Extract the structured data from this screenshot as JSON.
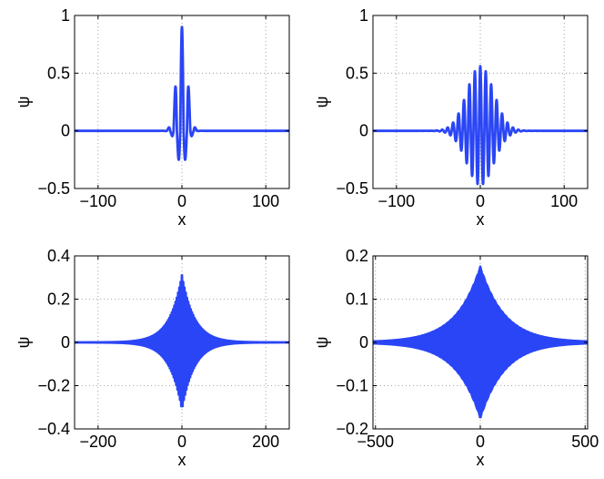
{
  "figure": {
    "layout": "2x2 grid of line plots",
    "background": "#ffffff",
    "line_color": "#2a45f5",
    "grid_color": "#8c8c8c",
    "grid": "dotted"
  },
  "chart_data": [
    {
      "type": "line",
      "position": "top-left",
      "xlabel": "x",
      "ylabel": "ψ",
      "xlim": [
        -128,
        128
      ],
      "ylim": [
        -0.5,
        1
      ],
      "xticks": [
        -100,
        0,
        100
      ],
      "xtick_labels": [
        "−100",
        "0",
        "100"
      ],
      "yticks": [
        -0.5,
        0,
        0.5,
        1
      ],
      "ytick_labels": [
        "−0.5",
        "0",
        "0.5",
        "1"
      ],
      "grid": true,
      "series": [
        {
          "shape": "localized oscillation",
          "peak": 0.9,
          "minimum": -0.31,
          "carrier_period": 8,
          "width": 6,
          "visible_lobes": 5
        }
      ]
    },
    {
      "type": "line",
      "position": "top-right",
      "xlabel": "x",
      "ylabel": "ψ",
      "xlim": [
        -128,
        128
      ],
      "ylim": [
        -0.5,
        1
      ],
      "xticks": [
        -100,
        0,
        100
      ],
      "xtick_labels": [
        "−100",
        "0",
        "100"
      ],
      "yticks": [
        -0.5,
        0,
        0.5,
        1
      ],
      "ytick_labels": [
        "−0.5",
        "0",
        "0.5",
        "1"
      ],
      "grid": true,
      "series": [
        {
          "shape": "localized oscillation",
          "peak": 0.56,
          "minimum": -0.47,
          "carrier_period": 6.5,
          "width": 16,
          "visible_lobes": 13
        }
      ]
    },
    {
      "type": "line",
      "position": "bottom-left",
      "xlabel": "x",
      "ylabel": "ψ",
      "xlim": [
        -256,
        256
      ],
      "ylim": [
        -0.4,
        0.4
      ],
      "xticks": [
        -200,
        0,
        200
      ],
      "xtick_labels": [
        "−200",
        "0",
        "200"
      ],
      "yticks": [
        -0.4,
        -0.2,
        0,
        0.2,
        0.4
      ],
      "ytick_labels": [
        "−0.4",
        "−0.2",
        "0",
        "0.2",
        "0.4"
      ],
      "grid": true,
      "series": [
        {
          "shape": "dense oscillation with exponential envelope",
          "peak": 0.31,
          "minimum": -0.31,
          "carrier_period": 3,
          "envelope_decay": 30
        }
      ]
    },
    {
      "type": "line",
      "position": "bottom-right",
      "xlabel": "x",
      "ylabel": "ψ",
      "xlim": [
        -512,
        512
      ],
      "ylim": [
        -0.2,
        0.2
      ],
      "xticks": [
        -500,
        0,
        500
      ],
      "xtick_labels": [
        "−500",
        "0",
        "500"
      ],
      "yticks": [
        -0.2,
        -0.1,
        0,
        0.1,
        0.2
      ],
      "ytick_labels": [
        "−0.2",
        "−0.1",
        "0",
        "0.1",
        "0.2"
      ],
      "grid": true,
      "series": [
        {
          "shape": "dense oscillation with exponential envelope",
          "peak": 0.175,
          "minimum": -0.175,
          "carrier_period": 3,
          "envelope_decay": 115
        }
      ]
    }
  ]
}
